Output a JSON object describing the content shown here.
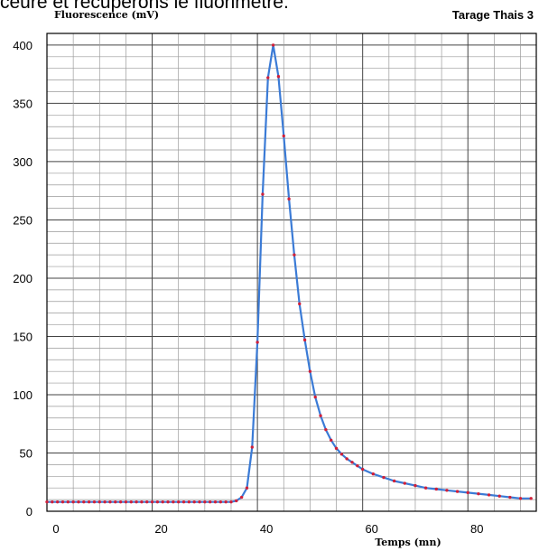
{
  "caption_text": "ceure et récupérons le fluorimètre.",
  "chart_data": {
    "type": "line",
    "title": "Tarage Thais 3",
    "ylabel": "Fluorescence (mV)",
    "xlabel": "Temps (mn)",
    "xlim": [
      0,
      93
    ],
    "ylim": [
      0,
      410
    ],
    "x_ticks": [
      0,
      20,
      40,
      60,
      80
    ],
    "y_ticks": [
      0,
      50,
      100,
      150,
      200,
      250,
      300,
      350,
      400
    ],
    "grid": true,
    "line_color": "#3b7bd6",
    "marker_color": "#d0203a",
    "series": [
      {
        "x": [
          0,
          1,
          2,
          3,
          4,
          5,
          6,
          7,
          8,
          9,
          10,
          11,
          12,
          13,
          14,
          15,
          16,
          17,
          18,
          19,
          20,
          21,
          22,
          23,
          24,
          25,
          26,
          27,
          28,
          29,
          30,
          31,
          32,
          33,
          34,
          35,
          36,
          37,
          38,
          39,
          40,
          41,
          42,
          43,
          44,
          45,
          46,
          47,
          48,
          49,
          50,
          51,
          52,
          53,
          54,
          55,
          56,
          57,
          58,
          59,
          60,
          62,
          64,
          66,
          68,
          70,
          72,
          74,
          76,
          78,
          80,
          82,
          84,
          86,
          88,
          90,
          92
        ],
        "y": [
          8,
          8,
          8,
          8,
          8,
          8,
          8,
          8,
          8,
          8,
          8,
          8,
          8,
          8,
          8,
          8,
          8,
          8,
          8,
          8,
          8,
          8,
          8,
          8,
          8,
          8,
          8,
          8,
          8,
          8,
          8,
          8,
          8,
          8,
          8,
          8,
          9,
          12,
          20,
          55,
          145,
          272,
          372,
          400,
          373,
          322,
          268,
          220,
          178,
          147,
          120,
          98,
          82,
          70,
          61,
          54,
          49,
          45,
          42,
          39,
          36,
          32,
          29,
          26,
          24,
          22,
          20,
          19,
          18,
          17,
          16,
          15,
          14,
          13,
          12,
          11,
          11
        ]
      }
    ]
  }
}
